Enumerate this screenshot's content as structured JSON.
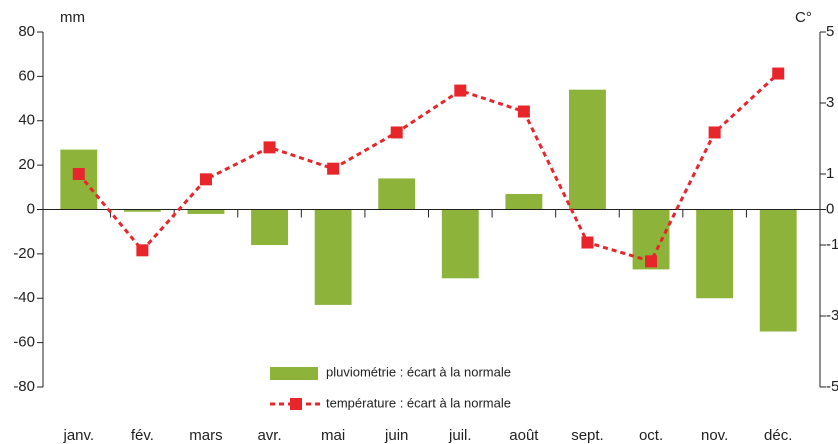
{
  "chart_data": {
    "type": "bar",
    "y_label": "mm",
    "y2_label": "C°",
    "categories": [
      "janv.",
      "fév.",
      "mars",
      "avr.",
      "mai",
      "juin",
      "juil.",
      "août",
      "sept.",
      "oct.",
      "nov.",
      "déc."
    ],
    "series": [
      {
        "name": "pluviométrie : écart à la normale",
        "type": "bar",
        "color": "#8db33a",
        "values": [
          27,
          -1,
          -2,
          -16,
          -43,
          14,
          -31,
          7,
          54,
          -27,
          -40,
          -55
        ]
      },
      {
        "name": "température : écart à la normale",
        "type": "line",
        "axis": "y2",
        "color": "#e8252a",
        "values": [
          1.0,
          -1.15,
          0.85,
          1.75,
          1.15,
          2.17,
          3.35,
          2.76,
          -0.93,
          -1.46,
          2.17,
          3.83
        ]
      }
    ],
    "ylim": [
      -80,
      80
    ],
    "yticks": [
      -80,
      -60,
      -40,
      -20,
      0,
      20,
      40,
      60,
      80
    ],
    "y2lim": [
      -5,
      5
    ],
    "y2ticks": [
      -5,
      -3,
      -1,
      0,
      1,
      3,
      5
    ]
  }
}
